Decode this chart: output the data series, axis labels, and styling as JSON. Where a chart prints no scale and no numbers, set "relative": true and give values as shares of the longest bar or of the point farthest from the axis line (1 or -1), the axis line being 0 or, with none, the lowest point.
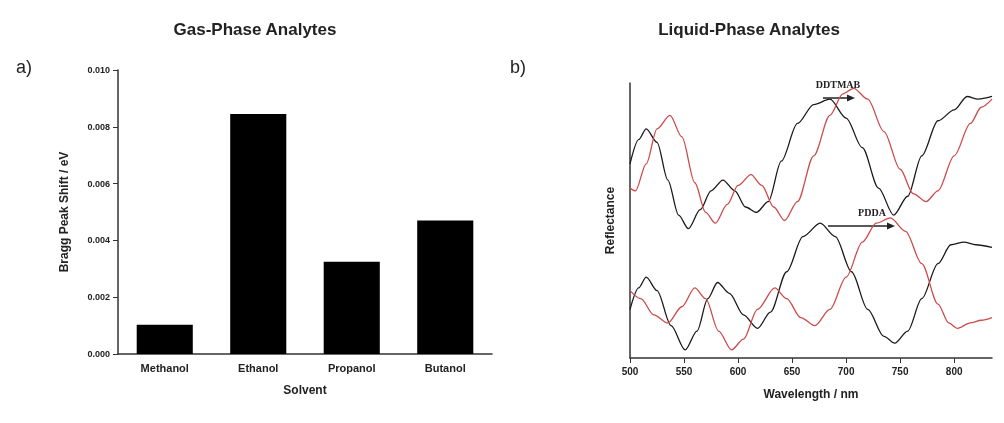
{
  "chart_data": [
    {
      "type": "bar",
      "title": "Gas-Phase Analytes",
      "xlabel": "Solvent",
      "ylabel": "Bragg Peak Shift / eV",
      "annotations": [
        "a)"
      ],
      "categories": [
        "Methanol",
        "Ethanol",
        "Propanol",
        "Butanol"
      ],
      "values": [
        0.00103,
        0.00845,
        0.00325,
        0.0047
      ],
      "color": "#000000",
      "ylim": [
        0,
        0.01
      ],
      "yticks": [
        {
          "value": 0,
          "label": "0.000"
        },
        {
          "value": 0.002,
          "label": "0.002"
        },
        {
          "value": 0.004,
          "label": "0.004"
        },
        {
          "value": 0.006,
          "label": "0.006"
        },
        {
          "value": 0.008,
          "label": "0.008"
        },
        {
          "value": 0.01,
          "label": "0.010"
        }
      ],
      "grid": false
    },
    {
      "type": "line",
      "title": "Liquid-Phase Analytes",
      "xlabel": "Wavelength / nm",
      "ylabel": "Reflectance",
      "relative": true,
      "tick_labels": "x",
      "marker": "none",
      "line_style": "solid",
      "grid": false,
      "annotations": [
        "b)",
        "DDTMAB",
        "PDDA"
      ],
      "xlim": [
        500,
        835
      ],
      "xticks": [
        500,
        550,
        600,
        650,
        700,
        750,
        800
      ],
      "series": [
        {
          "color": "#1a1a1a",
          "x": [
            500,
            508,
            515,
            525,
            535,
            545,
            554,
            565,
            575,
            586,
            597,
            607,
            617,
            628,
            640,
            655,
            670,
            685,
            700,
            715,
            730,
            744,
            757,
            770,
            785,
            800,
            812,
            822,
            835
          ],
          "values": [
            0.72,
            0.81,
            0.85,
            0.8,
            0.66,
            0.53,
            0.48,
            0.55,
            0.62,
            0.66,
            0.62,
            0.56,
            0.54,
            0.58,
            0.73,
            0.87,
            0.94,
            0.96,
            0.89,
            0.78,
            0.63,
            0.53,
            0.6,
            0.75,
            0.88,
            0.92,
            0.97,
            0.96,
            0.97
          ]
        },
        {
          "color": "#cc4a4a",
          "x": [
            500,
            505,
            515,
            525,
            537,
            548,
            560,
            570,
            579,
            590,
            600,
            612,
            622,
            633,
            643,
            655,
            670,
            685,
            697,
            707,
            720,
            735,
            750,
            762,
            774,
            785,
            800,
            815,
            825,
            835
          ],
          "values": [
            0.63,
            0.62,
            0.72,
            0.85,
            0.9,
            0.82,
            0.65,
            0.54,
            0.5,
            0.57,
            0.64,
            0.68,
            0.64,
            0.56,
            0.51,
            0.58,
            0.75,
            0.9,
            0.98,
            1.0,
            0.96,
            0.84,
            0.7,
            0.61,
            0.58,
            0.62,
            0.75,
            0.87,
            0.93,
            0.96
          ]
        },
        {
          "color": "#1a1a1a",
          "x": [
            500,
            508,
            515,
            525,
            538,
            551,
            562,
            572,
            581,
            592,
            605,
            618,
            630,
            645,
            660,
            676,
            690,
            705,
            720,
            735,
            745,
            757,
            770,
            785,
            797,
            809,
            820,
            835
          ],
          "values": [
            0.18,
            0.26,
            0.3,
            0.25,
            0.12,
            0.03,
            0.1,
            0.22,
            0.28,
            0.24,
            0.16,
            0.11,
            0.17,
            0.32,
            0.45,
            0.5,
            0.45,
            0.32,
            0.18,
            0.08,
            0.055,
            0.1,
            0.22,
            0.35,
            0.42,
            0.43,
            0.42,
            0.41
          ]
        },
        {
          "color": "#cc4a4a",
          "x": [
            500,
            510,
            522,
            535,
            548,
            560,
            570,
            582,
            594,
            605,
            618,
            634,
            645,
            658,
            671,
            685,
            700,
            715,
            728,
            741,
            755,
            770,
            785,
            795,
            803,
            815,
            825,
            835
          ],
          "values": [
            0.25,
            0.22,
            0.16,
            0.13,
            0.19,
            0.26,
            0.22,
            0.1,
            0.03,
            0.07,
            0.18,
            0.26,
            0.22,
            0.15,
            0.12,
            0.18,
            0.3,
            0.43,
            0.5,
            0.52,
            0.47,
            0.35,
            0.2,
            0.13,
            0.11,
            0.13,
            0.14,
            0.15
          ]
        }
      ]
    }
  ]
}
